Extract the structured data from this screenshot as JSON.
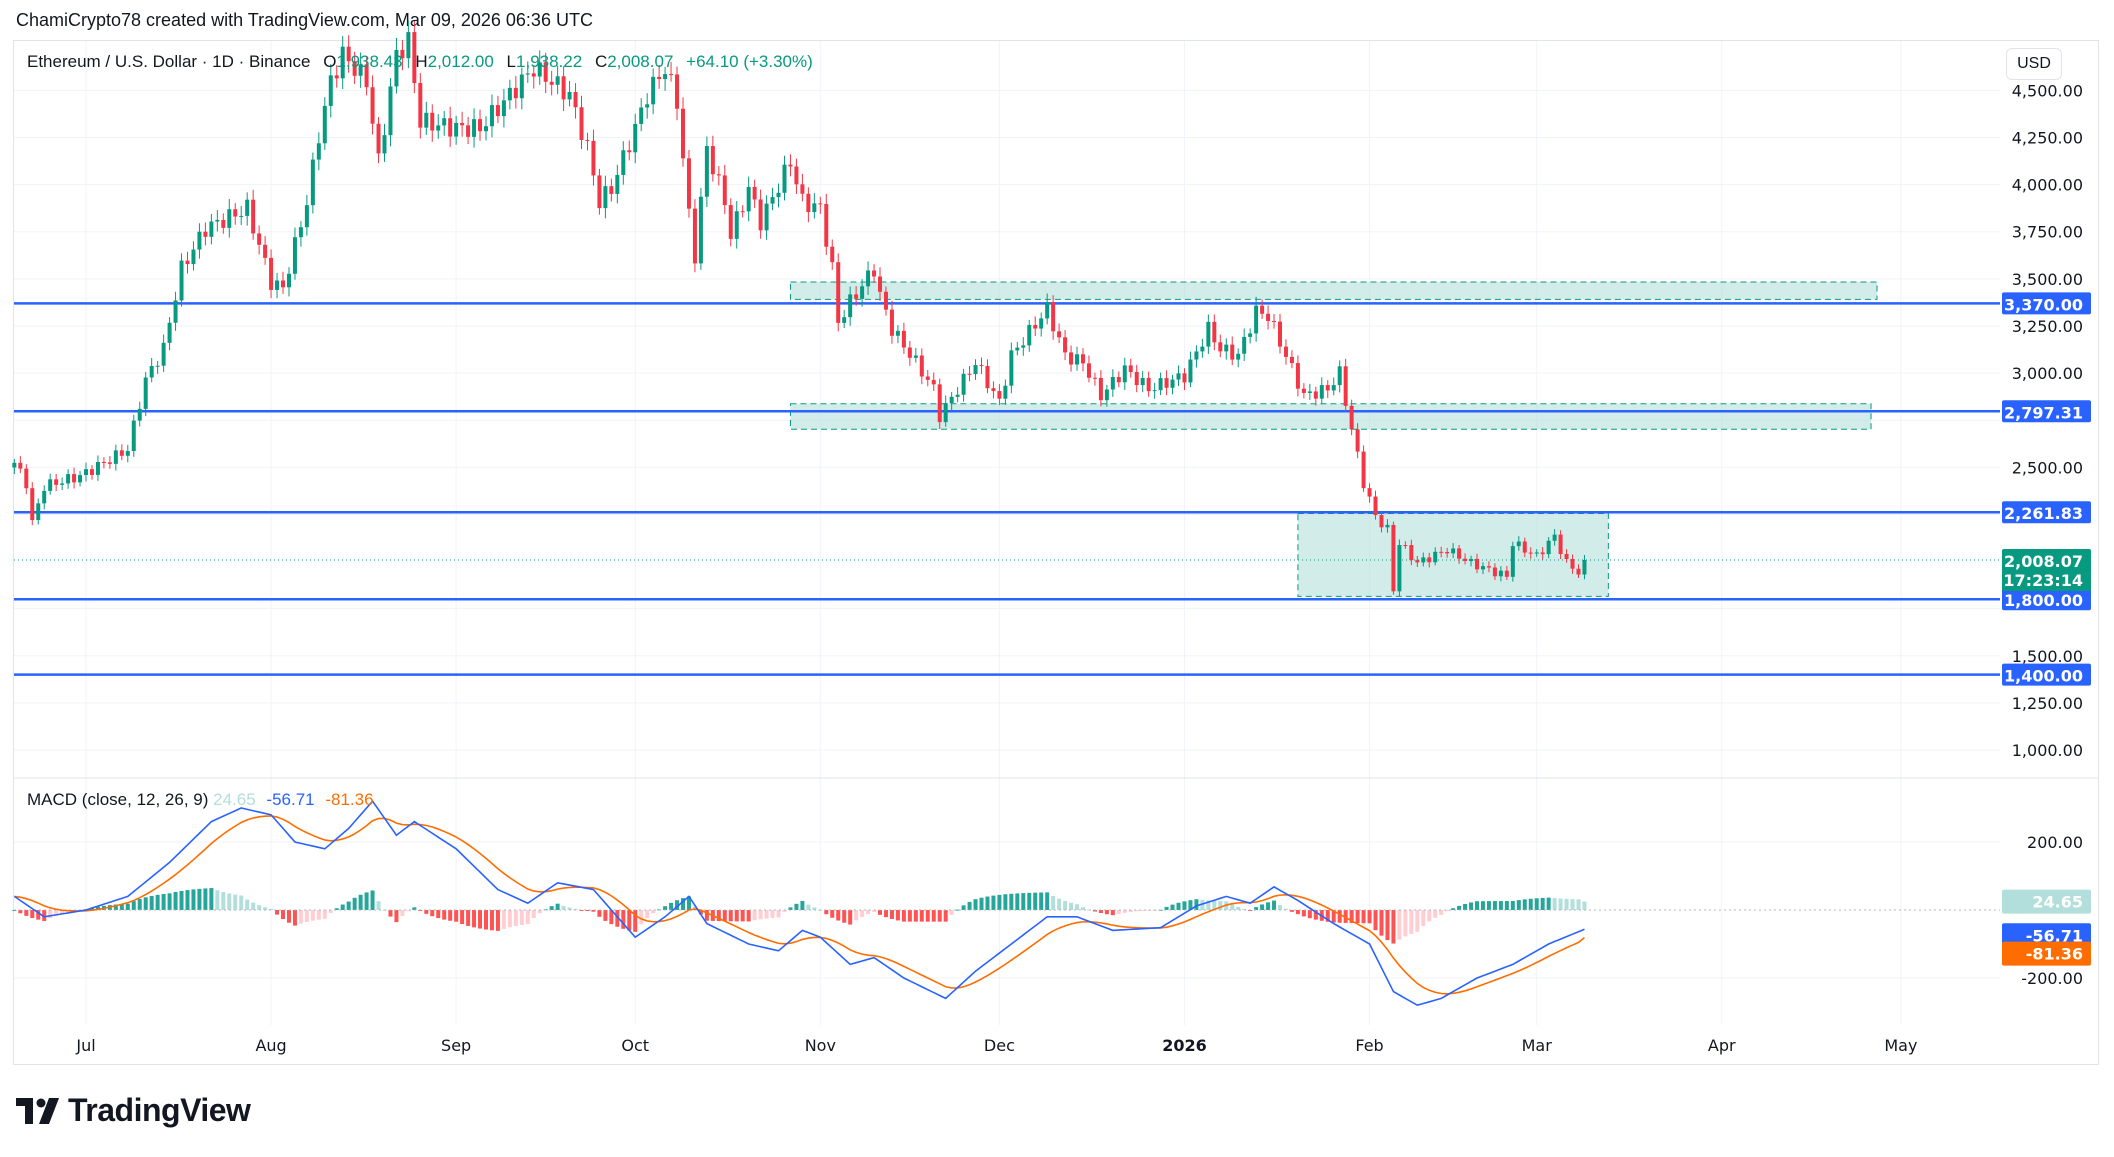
{
  "credit": "ChamiCrypto78 created with TradingView.com, Mar 09, 2026 06:36 UTC",
  "legend": {
    "symbol": "Ethereum / U.S. Dollar · 1D · Binance",
    "open_label": "O",
    "open": "1,938.43",
    "high_label": "H",
    "high": "2,012.00",
    "low_label": "L",
    "low": "1,938.22",
    "close_label": "C",
    "close": "2,008.07",
    "change": "+64.10 (+3.30%)"
  },
  "currency_button": "USD",
  "price_axis_ticks": [
    "4,500.00",
    "4,250.00",
    "4,000.00",
    "3,750.00",
    "3,500.00",
    "3,250.00",
    "3,000.00",
    "2,500.00",
    "1,500.00",
    "1,250.00",
    "1,000.00"
  ],
  "price_axis_values": [
    4500,
    4250,
    4000,
    3750,
    3500,
    3250,
    3000,
    2500,
    1500,
    1250,
    1000
  ],
  "horizontal_lines": [
    {
      "price": 3370,
      "label": "3,370.00"
    },
    {
      "price": 2797.31,
      "label": "2,797.31"
    },
    {
      "price": 2261.83,
      "label": "2,261.83"
    },
    {
      "price": 1800,
      "label": "1,800.00"
    },
    {
      "price": 1400,
      "label": "1,400.00"
    }
  ],
  "current_price": {
    "price": 2008.07,
    "label": "2,008.07",
    "countdown": "17:23:14"
  },
  "zones": [
    {
      "from": "2025-10-27",
      "to": "2026-04-27",
      "top": 3483,
      "bottom": 3391
    },
    {
      "from": "2025-10-27",
      "to": "2026-04-26",
      "top": 2837,
      "bottom": 2702
    },
    {
      "from": "2026-01-20",
      "to": "2026-03-13",
      "top": 2255,
      "bottom": 1815
    }
  ],
  "time_axis": [
    {
      "label": "Jul",
      "date": "2025-07-01"
    },
    {
      "label": "Aug",
      "date": "2025-08-01"
    },
    {
      "label": "Sep",
      "date": "2025-09-01"
    },
    {
      "label": "Oct",
      "date": "2025-10-01"
    },
    {
      "label": "Nov",
      "date": "2025-11-01"
    },
    {
      "label": "Dec",
      "date": "2025-12-01"
    },
    {
      "label": "2026",
      "date": "2026-01-01"
    },
    {
      "label": "Feb",
      "date": "2026-02-01"
    },
    {
      "label": "Mar",
      "date": "2026-03-01"
    },
    {
      "label": "Apr",
      "date": "2026-04-01"
    },
    {
      "label": "May",
      "date": "2026-05-01"
    }
  ],
  "macd": {
    "title": "MACD (close, 12, 26, 9)",
    "histogram": "24.65",
    "macd": "-56.71",
    "signal": "-81.36",
    "axis_ticks": [
      "200.00",
      "-200.00"
    ],
    "axis_values": [
      200,
      -200
    ],
    "colors": {
      "macd": "#2962ff",
      "signal": "#ff6d00",
      "hist_pos": "#26a69a",
      "hist_pos_light": "#b2dfdb",
      "hist_neg": "#ff5252",
      "hist_neg_light": "#ffcdd2"
    }
  },
  "colors": {
    "up": "#089981",
    "down": "#f23645",
    "line": "#2962ff",
    "zone": "#b2dfdb"
  },
  "logo": "TradingView",
  "chart_data": {
    "type": "candlestick",
    "title": "Ethereum / U.S. Dollar · 1D · Binance",
    "ylim": [
      900,
      4600
    ],
    "approx_close_path": [
      [
        "2025-06-19",
        2524
      ],
      [
        "2025-06-21",
        2418
      ],
      [
        "2025-06-22",
        2205
      ],
      [
        "2025-06-24",
        2400
      ],
      [
        "2025-06-30",
        2454
      ],
      [
        "2025-07-08",
        2595
      ],
      [
        "2025-07-11",
        2965
      ],
      [
        "2025-07-14",
        3130
      ],
      [
        "2025-07-17",
        3554
      ],
      [
        "2025-07-21",
        3767
      ],
      [
        "2025-07-28",
        3874
      ],
      [
        "2025-08-01",
        3483
      ],
      [
        "2025-08-03",
        3448
      ],
      [
        "2025-08-07",
        3909
      ],
      [
        "2025-08-09",
        4264
      ],
      [
        "2025-08-11",
        4548
      ],
      [
        "2025-08-13",
        4690
      ],
      [
        "2025-08-17",
        4548
      ],
      [
        "2025-08-19",
        4122
      ],
      [
        "2025-08-22",
        4690
      ],
      [
        "2025-08-24",
        4761
      ],
      [
        "2025-08-26",
        4335
      ],
      [
        "2025-09-01",
        4300
      ],
      [
        "2025-09-05",
        4300
      ],
      [
        "2025-09-12",
        4548
      ],
      [
        "2025-09-14",
        4619
      ],
      [
        "2025-09-20",
        4477
      ],
      [
        "2025-09-23",
        4193
      ],
      [
        "2025-09-25",
        3909
      ],
      [
        "2025-09-27",
        3980
      ],
      [
        "2025-10-01",
        4300
      ],
      [
        "2025-10-03",
        4477
      ],
      [
        "2025-10-06",
        4619
      ],
      [
        "2025-10-08",
        4442
      ],
      [
        "2025-10-10",
        3838
      ],
      [
        "2025-10-11",
        3625
      ],
      [
        "2025-10-13",
        4193
      ],
      [
        "2025-10-16",
        3909
      ],
      [
        "2025-10-17",
        3732
      ],
      [
        "2025-10-20",
        3980
      ],
      [
        "2025-10-22",
        3803
      ],
      [
        "2025-10-27",
        4122
      ],
      [
        "2025-10-29",
        3909
      ],
      [
        "2025-11-01",
        3874
      ],
      [
        "2025-11-03",
        3554
      ],
      [
        "2025-11-04",
        3270
      ],
      [
        "2025-11-06",
        3377
      ],
      [
        "2025-11-10",
        3554
      ],
      [
        "2025-11-11",
        3412
      ],
      [
        "2025-11-13",
        3234
      ],
      [
        "2025-11-17",
        3057
      ],
      [
        "2025-11-20",
        2915
      ],
      [
        "2025-11-21",
        2773
      ],
      [
        "2025-11-24",
        2915
      ],
      [
        "2025-11-27",
        3057
      ],
      [
        "2025-12-01",
        2844
      ],
      [
        "2025-12-03",
        3093
      ],
      [
        "2025-12-09",
        3341
      ],
      [
        "2025-12-12",
        3093
      ],
      [
        "2025-12-15",
        3057
      ],
      [
        "2025-12-18",
        2880
      ],
      [
        "2025-12-22",
        3022
      ],
      [
        "2025-12-26",
        2915
      ],
      [
        "2026-01-01",
        2986
      ],
      [
        "2026-01-05",
        3234
      ],
      [
        "2026-01-07",
        3128
      ],
      [
        "2026-01-10",
        3093
      ],
      [
        "2026-01-13",
        3327
      ],
      [
        "2026-01-15",
        3305
      ],
      [
        "2026-01-19",
        3022
      ],
      [
        "2026-01-21",
        2880
      ],
      [
        "2026-01-25",
        2915
      ],
      [
        "2026-01-27",
        3000
      ],
      [
        "2026-01-29",
        2702
      ],
      [
        "2026-01-31",
        2418
      ],
      [
        "2026-02-02",
        2240
      ],
      [
        "2026-02-04",
        2170
      ],
      [
        "2026-02-05",
        1850
      ],
      [
        "2026-02-06",
        2099
      ],
      [
        "2026-02-09",
        1992
      ],
      [
        "2026-02-14",
        2063
      ],
      [
        "2026-02-18",
        1992
      ],
      [
        "2026-02-24",
        1921
      ],
      [
        "2026-02-25",
        2099
      ],
      [
        "2026-03-01",
        2028
      ],
      [
        "2026-03-04",
        2134
      ],
      [
        "2026-03-06",
        1992
      ],
      [
        "2026-03-08",
        1944
      ],
      [
        "2026-03-09",
        2008.07
      ]
    ],
    "macd_path": [
      [
        "2025-06-19",
        40
      ],
      [
        "2025-06-24",
        -20
      ],
      [
        "2025-07-01",
        0
      ],
      [
        "2025-07-08",
        40
      ],
      [
        "2025-07-15",
        140
      ],
      [
        "2025-07-22",
        260
      ],
      [
        "2025-07-27",
        300
      ],
      [
        "2025-08-01",
        280
      ],
      [
        "2025-08-05",
        200
      ],
      [
        "2025-08-10",
        180
      ],
      [
        "2025-08-14",
        240
      ],
      [
        "2025-08-18",
        320
      ],
      [
        "2025-08-22",
        220
      ],
      [
        "2025-08-25",
        260
      ],
      [
        "2025-09-01",
        180
      ],
      [
        "2025-09-08",
        60
      ],
      [
        "2025-09-13",
        20
      ],
      [
        "2025-09-18",
        80
      ],
      [
        "2025-09-24",
        60
      ],
      [
        "2025-10-01",
        -80
      ],
      [
        "2025-10-06",
        -20
      ],
      [
        "2025-10-10",
        40
      ],
      [
        "2025-10-13",
        -40
      ],
      [
        "2025-10-20",
        -100
      ],
      [
        "2025-10-25",
        -120
      ],
      [
        "2025-10-29",
        -60
      ],
      [
        "2025-11-01",
        -80
      ],
      [
        "2025-11-06",
        -160
      ],
      [
        "2025-11-10",
        -140
      ],
      [
        "2025-11-15",
        -200
      ],
      [
        "2025-11-22",
        -260
      ],
      [
        "2025-11-27",
        -180
      ],
      [
        "2025-12-03",
        -100
      ],
      [
        "2025-12-09",
        -20
      ],
      [
        "2025-12-14",
        -20
      ],
      [
        "2025-12-20",
        -60
      ],
      [
        "2025-12-28",
        -52
      ],
      [
        "2026-01-03",
        12
      ],
      [
        "2026-01-08",
        40
      ],
      [
        "2026-01-12",
        20
      ],
      [
        "2026-01-16",
        68
      ],
      [
        "2026-01-20",
        28
      ],
      [
        "2026-01-26",
        -40
      ],
      [
        "2026-02-01",
        -100
      ],
      [
        "2026-02-05",
        -240
      ],
      [
        "2026-02-09",
        -280
      ],
      [
        "2026-02-13",
        -260
      ],
      [
        "2026-02-19",
        -200
      ],
      [
        "2026-02-25",
        -160
      ],
      [
        "2026-03-03",
        -100
      ],
      [
        "2026-03-09",
        -56.71
      ]
    ],
    "signal_last": -81.36,
    "histogram_last": 24.65
  }
}
